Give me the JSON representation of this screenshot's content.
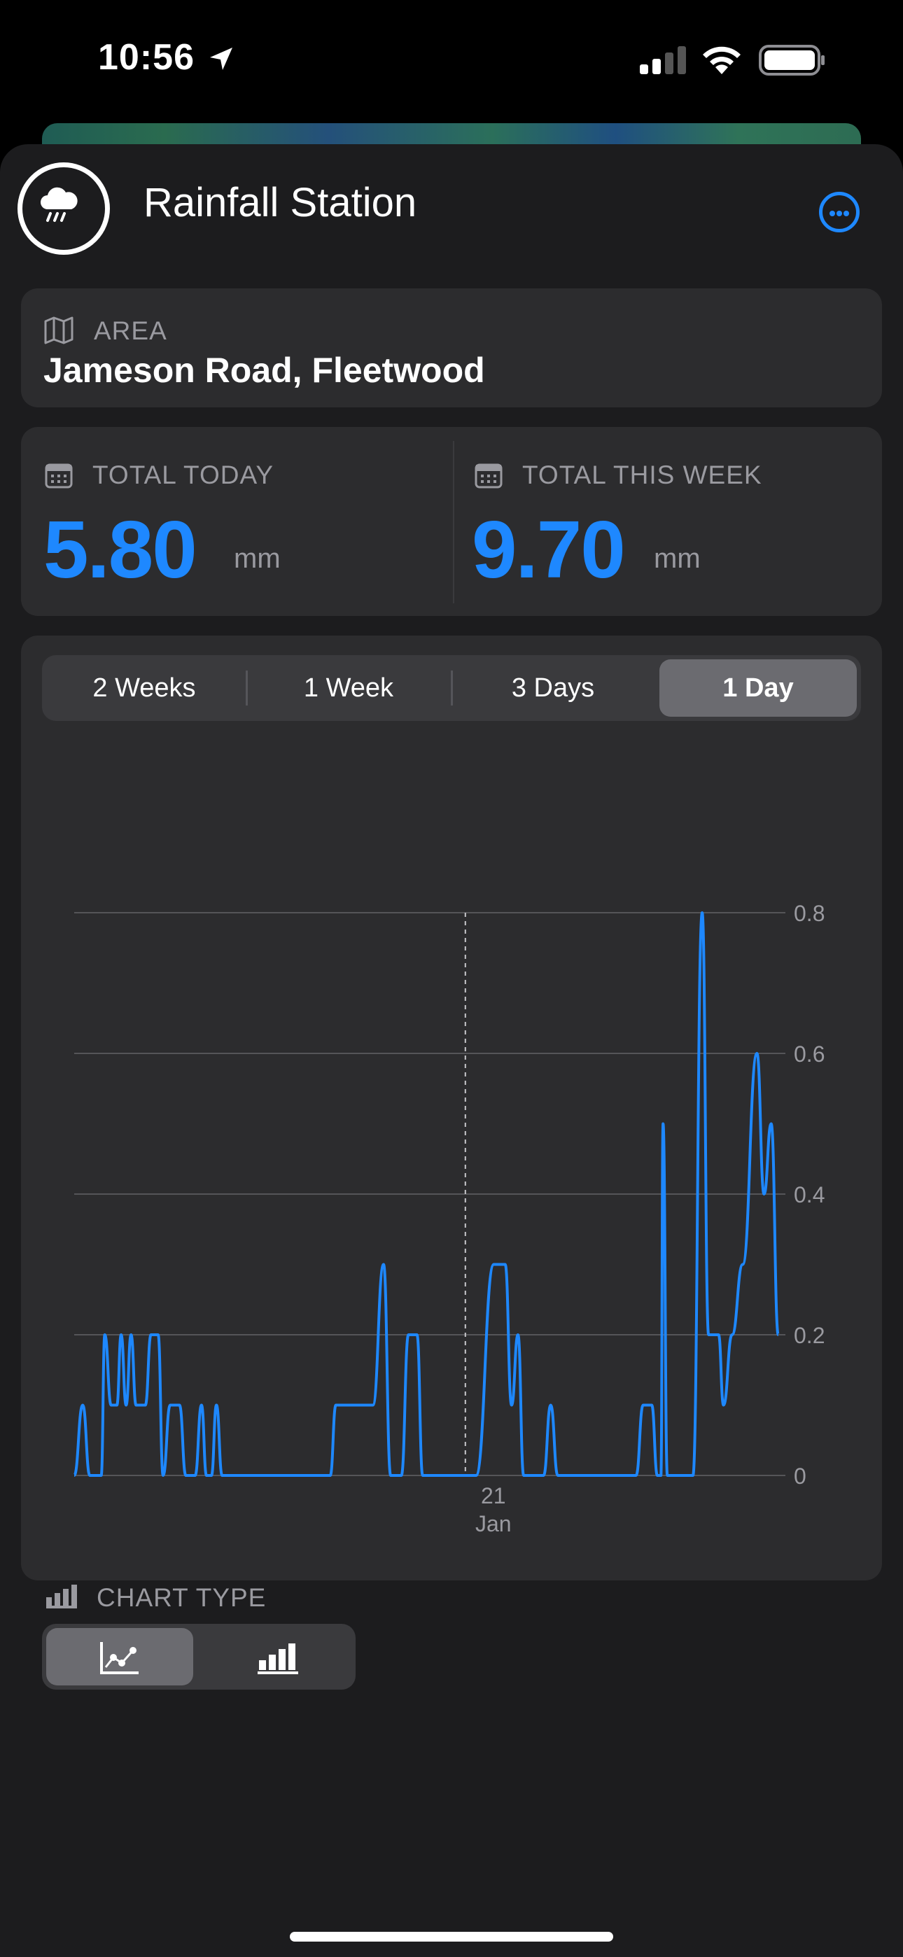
{
  "status_bar": {
    "time": "10:56"
  },
  "header": {
    "title": "Rainfall Station"
  },
  "area": {
    "label": "AREA",
    "value": "Jameson Road, Fleetwood"
  },
  "totals": {
    "today": {
      "label": "TOTAL TODAY",
      "value": "5.80",
      "unit": "mm"
    },
    "week": {
      "label": "TOTAL THIS WEEK",
      "value": "9.70",
      "unit": "mm"
    }
  },
  "range_tabs": [
    {
      "label": "2 Weeks",
      "selected": false
    },
    {
      "label": "1 Week",
      "selected": false
    },
    {
      "label": "3 Days",
      "selected": false
    },
    {
      "label": "1 Day",
      "selected": true
    }
  ],
  "chart_type": {
    "label": "CHART TYPE",
    "options": [
      "line-chart-icon",
      "bar-chart-icon"
    ],
    "selected": "line-chart-icon"
  },
  "colors": {
    "accent": "#1e88ff",
    "card": "#2c2c2e",
    "sheet": "#1c1c1e"
  },
  "chart_data": {
    "type": "line",
    "ylim": [
      0,
      0.8
    ],
    "yticks": [
      "0.8",
      "0.6",
      "0.4",
      "0.2",
      "0"
    ],
    "x_label_day": "21",
    "x_label_month": "Jan",
    "marker_x": 0.55,
    "series": [
      {
        "color": "#1e88ff",
        "points": [
          [
            0.0,
            0.0
          ],
          [
            0.012,
            0.1
          ],
          [
            0.022,
            0.0
          ],
          [
            0.038,
            0.0
          ],
          [
            0.043,
            0.2
          ],
          [
            0.052,
            0.1
          ],
          [
            0.06,
            0.1
          ],
          [
            0.066,
            0.2
          ],
          [
            0.073,
            0.1
          ],
          [
            0.08,
            0.2
          ],
          [
            0.087,
            0.1
          ],
          [
            0.1,
            0.1
          ],
          [
            0.108,
            0.2
          ],
          [
            0.118,
            0.2
          ],
          [
            0.125,
            0.0
          ],
          [
            0.135,
            0.1
          ],
          [
            0.148,
            0.1
          ],
          [
            0.157,
            0.0
          ],
          [
            0.17,
            0.0
          ],
          [
            0.179,
            0.1
          ],
          [
            0.186,
            0.0
          ],
          [
            0.193,
            0.0
          ],
          [
            0.2,
            0.1
          ],
          [
            0.208,
            0.0
          ],
          [
            0.36,
            0.0
          ],
          [
            0.368,
            0.1
          ],
          [
            0.42,
            0.1
          ],
          [
            0.435,
            0.3
          ],
          [
            0.445,
            0.0
          ],
          [
            0.46,
            0.0
          ],
          [
            0.47,
            0.2
          ],
          [
            0.482,
            0.2
          ],
          [
            0.49,
            0.0
          ],
          [
            0.565,
            0.0
          ],
          [
            0.59,
            0.3
          ],
          [
            0.606,
            0.3
          ],
          [
            0.615,
            0.1
          ],
          [
            0.624,
            0.2
          ],
          [
            0.632,
            0.0
          ],
          [
            0.66,
            0.0
          ],
          [
            0.67,
            0.1
          ],
          [
            0.68,
            0.0
          ],
          [
            0.79,
            0.0
          ],
          [
            0.8,
            0.1
          ],
          [
            0.812,
            0.1
          ],
          [
            0.82,
            0.0
          ],
          [
            0.825,
            0.0
          ],
          [
            0.828,
            0.5
          ],
          [
            0.834,
            0.0
          ],
          [
            0.87,
            0.0
          ],
          [
            0.883,
            0.8
          ],
          [
            0.892,
            0.2
          ],
          [
            0.906,
            0.2
          ],
          [
            0.913,
            0.1
          ],
          [
            0.925,
            0.2
          ],
          [
            0.94,
            0.3
          ],
          [
            0.96,
            0.6
          ],
          [
            0.97,
            0.4
          ],
          [
            0.98,
            0.5
          ],
          [
            0.99,
            0.2
          ]
        ]
      }
    ]
  }
}
